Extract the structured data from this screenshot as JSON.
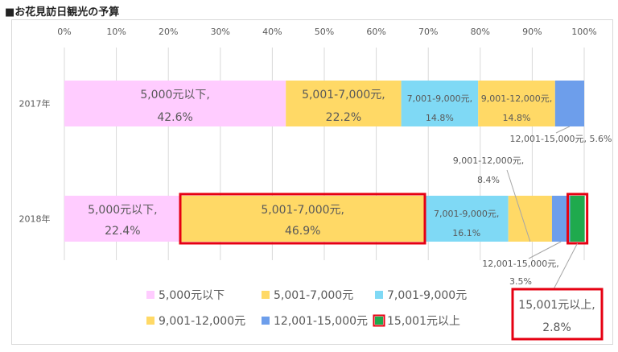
{
  "page": {
    "title": "■お花見訪日観光の予算"
  },
  "chart_data": {
    "type": "bar",
    "orientation": "horizontal",
    "stacked": "100%",
    "categories": [
      "2017年",
      "2018年"
    ],
    "x_ticks": [
      "0%",
      "10%",
      "20%",
      "30%",
      "40%",
      "50%",
      "60%",
      "70%",
      "80%",
      "90%",
      "100%"
    ],
    "xlim": [
      0,
      100
    ],
    "grid": true,
    "legend_position": "bottom",
    "series": [
      {
        "name": "5,000元以下",
        "color": "#ffccff",
        "values": [
          42.6,
          22.4
        ]
      },
      {
        "name": "5,001-7,000元",
        "color": "#ffd966",
        "values": [
          22.2,
          46.9
        ]
      },
      {
        "name": "7,001-9,000元",
        "color": "#7fd9f5",
        "values": [
          14.8,
          16.1
        ]
      },
      {
        "name": "9,001-12,000元",
        "color": "#ffd966",
        "values": [
          14.8,
          8.4
        ]
      },
      {
        "name": "12,001-15,000元",
        "color": "#6d9eeb",
        "values": [
          5.6,
          3.5
        ]
      },
      {
        "name": "15,001元以上",
        "color": "#1faa4d",
        "values": [
          0,
          2.8
        ]
      }
    ],
    "labels": {
      "2017": {
        "s0": [
          "5,000元以下,",
          "42.6%"
        ],
        "s1": [
          "5,001-7,000元,",
          "22.2%"
        ],
        "s2": [
          "7,001-9,000元,",
          "14.8%"
        ],
        "s3": [
          "9,001-12,000元,",
          "14.8%"
        ],
        "s4": [
          "12,001-15,000元, 5.6%"
        ]
      },
      "2018": {
        "s0": [
          "5,000元以下,",
          "22.4%"
        ],
        "s1": [
          "5,001-7,000元,",
          "46.9%"
        ],
        "s2": [
          "7,001-9,000元,",
          "16.1%"
        ],
        "s3": [
          "9,001-12,000元,",
          "8.4%"
        ],
        "s4": [
          "12,001-15,000元,",
          "3.5%"
        ],
        "s5": [
          "15,001元以上,",
          "2.8%"
        ]
      }
    },
    "highlight_color": "#e60012"
  }
}
